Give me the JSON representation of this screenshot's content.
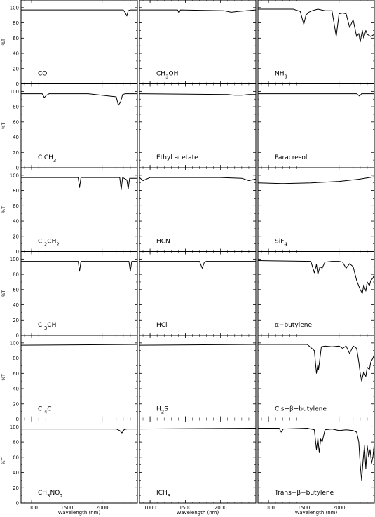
{
  "figure": {
    "ylabel": "%T",
    "xlabel": "Wavelength (nm)",
    "y_ticks": [
      "0",
      "20",
      "40",
      "60",
      "80",
      "100"
    ],
    "x_ticks": [
      "1000",
      "1500",
      "2000"
    ]
  },
  "chart_data": [
    {
      "type": "line",
      "title": "CO",
      "xlim": [
        850,
        2500
      ],
      "ylim": [
        0,
        110
      ],
      "x": [
        850,
        2300,
        2330,
        2350,
        2370,
        2400,
        2500
      ],
      "series": [
        {
          "values": [
            97,
            97,
            93,
            89,
            96,
            97,
            97
          ]
        }
      ]
    },
    {
      "type": "line",
      "title": "CH3OH",
      "xlim": [
        850,
        2500
      ],
      "ylim": [
        0,
        110
      ],
      "x": [
        850,
        1390,
        1410,
        1430,
        2050,
        2150,
        2250,
        2500
      ],
      "series": [
        {
          "values": [
            97,
            97,
            93,
            97,
            96,
            94,
            95,
            97
          ]
        }
      ]
    },
    {
      "type": "line",
      "title": "NH3",
      "xlim": [
        850,
        2500
      ],
      "ylim": [
        0,
        110
      ],
      "x": [
        850,
        1350,
        1450,
        1500,
        1530,
        1570,
        1620,
        1700,
        1800,
        1900,
        1960,
        2000,
        2050,
        2100,
        2150,
        2200,
        2250,
        2280,
        2300,
        2330,
        2350,
        2380,
        2400,
        2450,
        2500
      ],
      "series": [
        {
          "values": [
            98,
            98,
            95,
            78,
            90,
            94,
            96,
            98,
            96,
            96,
            62,
            92,
            93,
            92,
            74,
            84,
            62,
            66,
            55,
            70,
            60,
            70,
            65,
            62,
            65
          ]
        }
      ]
    },
    {
      "type": "line",
      "title": "ClCH3",
      "xlim": [
        850,
        2500
      ],
      "ylim": [
        0,
        110
      ],
      "x": [
        850,
        1150,
        1180,
        1210,
        1250,
        1800,
        2200,
        2230,
        2260,
        2290,
        2330,
        2500
      ],
      "series": [
        {
          "values": [
            97,
            97,
            92,
            95,
            97,
            97,
            93,
            82,
            86,
            96,
            97,
            97
          ]
        }
      ]
    },
    {
      "type": "line",
      "title": "Ethyl acetate",
      "xlim": [
        850,
        2500
      ],
      "ylim": [
        0,
        110
      ],
      "x": [
        850,
        2100,
        2200,
        2300,
        2400,
        2500
      ],
      "series": [
        {
          "values": [
            97,
            96,
            95,
            95,
            96,
            96
          ]
        }
      ]
    },
    {
      "type": "line",
      "title": "Paracresol",
      "xlim": [
        850,
        2500
      ],
      "ylim": [
        0,
        110
      ],
      "x": [
        850,
        2250,
        2290,
        2320,
        2500
      ],
      "series": [
        {
          "values": [
            97,
            97,
            94,
            97,
            97
          ]
        }
      ]
    },
    {
      "type": "line",
      "title": "Cl2CH2",
      "xlim": [
        850,
        2500
      ],
      "ylim": [
        0,
        110
      ],
      "x": [
        850,
        1660,
        1680,
        1700,
        2250,
        2270,
        2290,
        2350,
        2370,
        2390,
        2500
      ],
      "series": [
        {
          "values": [
            97,
            97,
            84,
            97,
            97,
            81,
            97,
            94,
            82,
            96,
            96
          ]
        }
      ]
    },
    {
      "type": "line",
      "title": "HCN",
      "xlim": [
        850,
        2500
      ],
      "ylim": [
        0,
        110
      ],
      "x": [
        850,
        900,
        1000,
        1500,
        2000,
        2300,
        2400,
        2500
      ],
      "series": [
        {
          "values": [
            97,
            93,
            97,
            97,
            97,
            96,
            93,
            95
          ]
        }
      ]
    },
    {
      "type": "line",
      "title": "SiF4",
      "xlim": [
        850,
        2500
      ],
      "ylim": [
        0,
        110
      ],
      "x": [
        850,
        1200,
        1600,
        2000,
        2300,
        2500
      ],
      "series": [
        {
          "values": [
            90,
            89,
            90,
            92,
            95,
            98
          ]
        }
      ]
    },
    {
      "type": "line",
      "title": "Cl3CH",
      "xlim": [
        850,
        2500
      ],
      "ylim": [
        0,
        110
      ],
      "x": [
        850,
        1660,
        1680,
        1700,
        2380,
        2400,
        2420,
        2500
      ],
      "series": [
        {
          "values": [
            97,
            97,
            84,
            97,
            97,
            84,
            97,
            97
          ]
        }
      ]
    },
    {
      "type": "line",
      "title": "HCl",
      "xlim": [
        850,
        2500
      ],
      "ylim": [
        0,
        110
      ],
      "x": [
        850,
        1700,
        1740,
        1770,
        1800,
        2500
      ],
      "series": [
        {
          "values": [
            97,
            97,
            88,
            96,
            97,
            97
          ]
        }
      ]
    },
    {
      "type": "line",
      "title": "α−butylene",
      "xlim": [
        850,
        2500
      ],
      "ylim": [
        0,
        110
      ],
      "x": [
        850,
        1600,
        1650,
        1680,
        1700,
        1730,
        1760,
        1800,
        1900,
        2000,
        2050,
        2100,
        2150,
        2200,
        2250,
        2300,
        2330,
        2350,
        2380,
        2400,
        2430,
        2450,
        2480,
        2500
      ],
      "series": [
        {
          "values": [
            98,
            97,
            82,
            93,
            80,
            90,
            88,
            96,
            97,
            97,
            96,
            88,
            94,
            90,
            72,
            60,
            55,
            66,
            58,
            70,
            65,
            72,
            75,
            80
          ]
        }
      ]
    },
    {
      "type": "line",
      "title": "Cl4C",
      "xlim": [
        850,
        2500
      ],
      "ylim": [
        0,
        110
      ],
      "x": [
        850,
        2500
      ],
      "series": [
        {
          "values": [
            97,
            98
          ]
        }
      ]
    },
    {
      "type": "line",
      "title": "H2S",
      "xlim": [
        850,
        2500
      ],
      "ylim": [
        0,
        110
      ],
      "x": [
        850,
        2500
      ],
      "series": [
        {
          "values": [
            97,
            98
          ]
        }
      ]
    },
    {
      "type": "line",
      "title": "Cis−β−butylene",
      "xlim": [
        850,
        2500
      ],
      "ylim": [
        0,
        110
      ],
      "x": [
        850,
        1550,
        1650,
        1680,
        1700,
        1710,
        1730,
        1750,
        1800,
        1900,
        2000,
        2050,
        2100,
        2150,
        2200,
        2250,
        2280,
        2300,
        2320,
        2350,
        2380,
        2400,
        2430,
        2450,
        2480,
        2500
      ],
      "series": [
        {
          "values": [
            98,
            98,
            90,
            60,
            72,
            65,
            80,
            95,
            96,
            95,
            96,
            93,
            96,
            86,
            96,
            93,
            75,
            60,
            50,
            62,
            56,
            68,
            65,
            75,
            80,
            85
          ]
        }
      ]
    },
    {
      "type": "line",
      "title": "CH3NO2",
      "xlim": [
        850,
        2500
      ],
      "ylim": [
        0,
        110
      ],
      "x": [
        850,
        2200,
        2250,
        2280,
        2310,
        2350,
        2500
      ],
      "series": [
        {
          "values": [
            97,
            97,
            95,
            92,
            96,
            97,
            97
          ]
        }
      ]
    },
    {
      "type": "line",
      "title": "ICH3",
      "xlim": [
        850,
        2500
      ],
      "ylim": [
        0,
        110
      ],
      "x": [
        850,
        2500
      ],
      "series": [
        {
          "values": [
            97,
            98
          ]
        }
      ]
    },
    {
      "type": "line",
      "title": "Trans−β−butylene",
      "xlim": [
        850,
        2500
      ],
      "ylim": [
        0,
        110
      ],
      "x": [
        850,
        1150,
        1180,
        1210,
        1550,
        1650,
        1680,
        1700,
        1720,
        1740,
        1760,
        1800,
        1900,
        2000,
        2100,
        2200,
        2250,
        2280,
        2300,
        2320,
        2340,
        2360,
        2380,
        2400,
        2420,
        2440,
        2460,
        2480,
        2500
      ],
      "series": [
        {
          "values": [
            98,
            98,
            93,
            97,
            98,
            96,
            70,
            85,
            66,
            84,
            80,
            96,
            97,
            95,
            96,
            95,
            93,
            80,
            50,
            30,
            55,
            75,
            45,
            75,
            60,
            70,
            52,
            60,
            80
          ]
        }
      ]
    }
  ]
}
